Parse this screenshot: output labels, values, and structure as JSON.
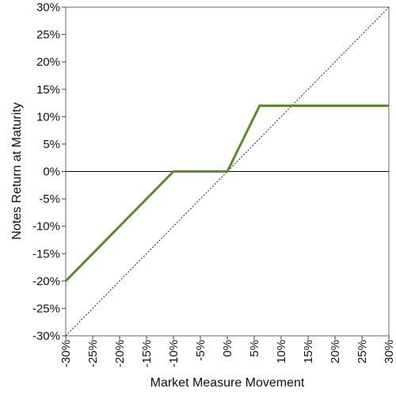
{
  "chart_data": {
    "type": "line",
    "title": "",
    "xlabel": "Market Measure Movement",
    "ylabel": "Notes Return at Maturity",
    "xlim": [
      -30,
      30
    ],
    "ylim": [
      -30,
      30
    ],
    "x_ticks": [
      -30,
      -25,
      -20,
      -15,
      -10,
      -5,
      0,
      5,
      10,
      15,
      20,
      25,
      30
    ],
    "y_ticks": [
      30,
      25,
      20,
      15,
      10,
      5,
      0,
      -5,
      -10,
      -15,
      -20,
      -25,
      -30
    ],
    "x_tick_labels": [
      "-30%",
      "-25%",
      "-20%",
      "-15%",
      "-10%",
      "-5%",
      "0%",
      "5%",
      "10%",
      "15%",
      "20%",
      "25%",
      "30%"
    ],
    "y_tick_labels": [
      "30%",
      "25%",
      "20%",
      "15%",
      "10%",
      "5%",
      "0%",
      "-5%",
      "-10%",
      "-15%",
      "-20%",
      "-25%",
      "-30%"
    ],
    "grid": false,
    "series": [
      {
        "style": "solid",
        "color": "#5b8c2a",
        "x": [
          -30,
          -10,
          0,
          6,
          30
        ],
        "y": [
          -20,
          0,
          0,
          12,
          12
        ]
      },
      {
        "style": "dotted",
        "color": "#222222",
        "x": [
          -30,
          30
        ],
        "y": [
          -30,
          30
        ]
      }
    ],
    "zero_line": {
      "y": 0,
      "color": "#000000"
    }
  }
}
